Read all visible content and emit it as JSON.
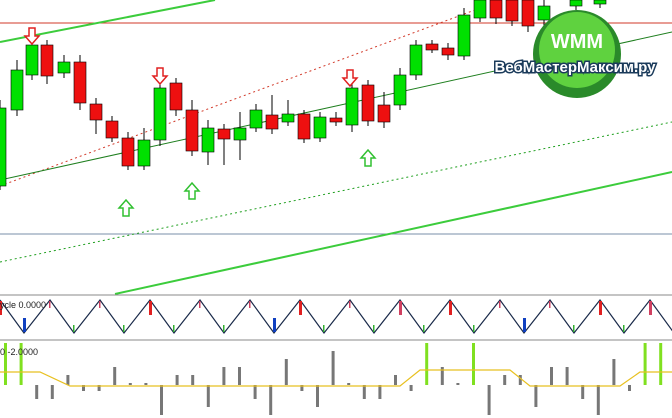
{
  "indicators": {
    "cycle_label": "ycle 0.0000",
    "oscillator_label": "0 -2.0000"
  },
  "watermark": {
    "logo": "WMM",
    "site": "ВебМастерМаксим.ру"
  }
}
